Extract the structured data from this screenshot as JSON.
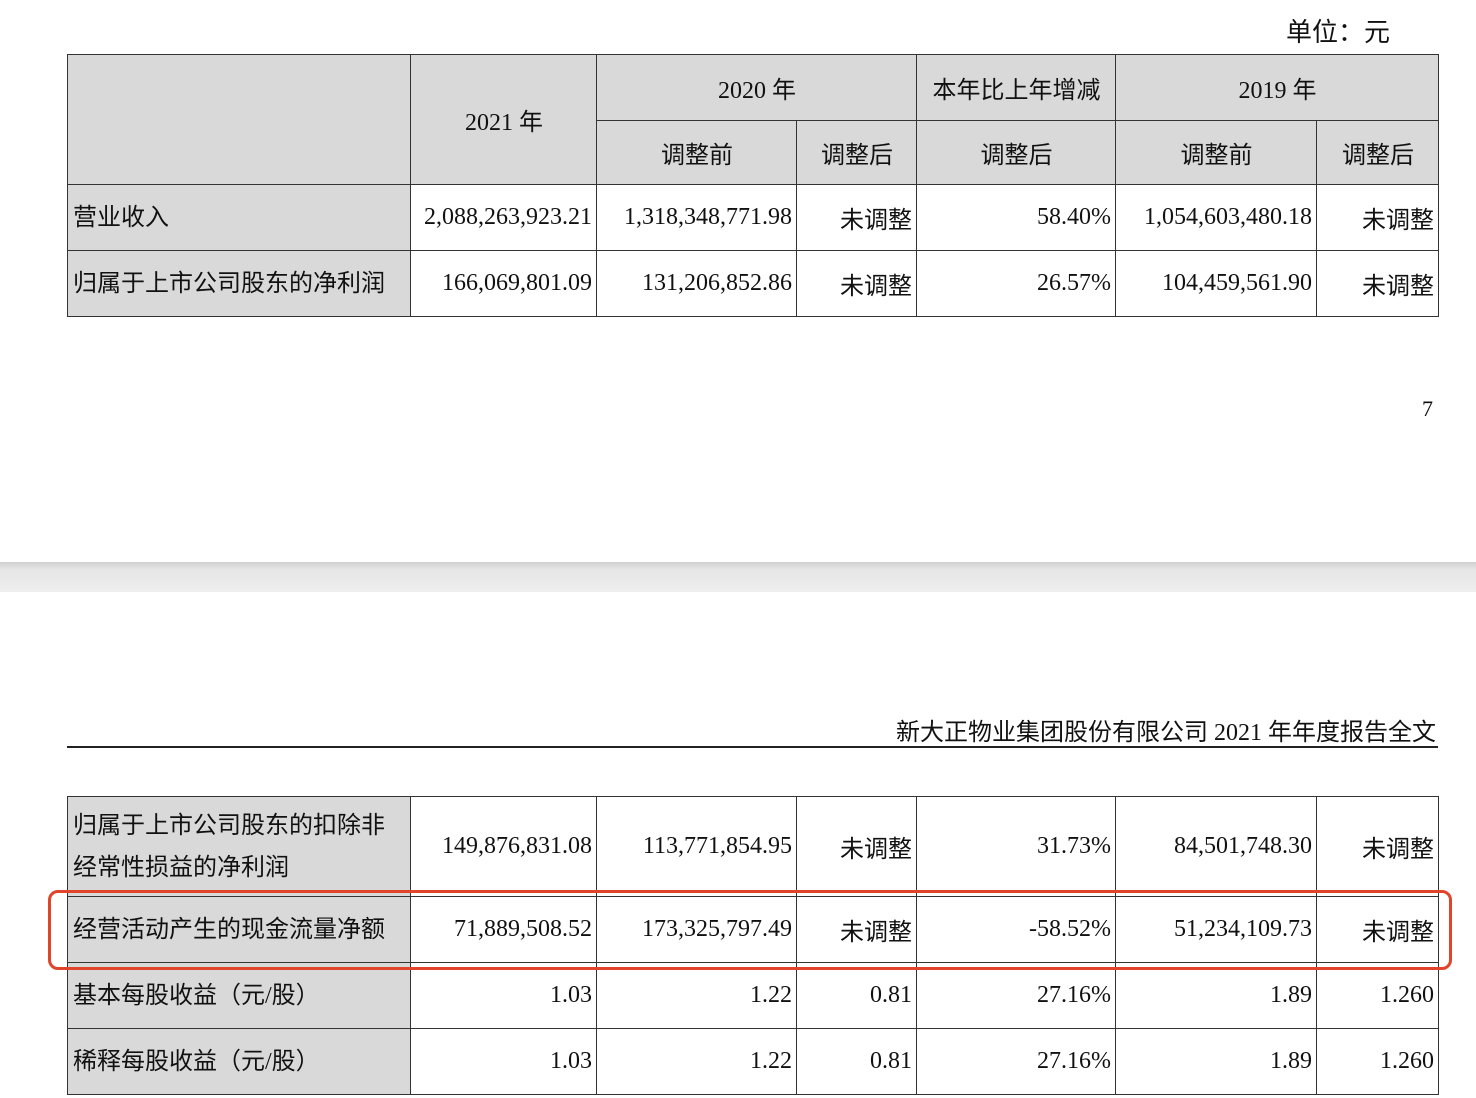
{
  "unit": "单位：元",
  "table1": {
    "header": {
      "year_2021": "2021 年",
      "year_2020": "2020 年",
      "change": "本年比上年增减",
      "year_2019": "2019 年",
      "sub": [
        "调整前",
        "调整后",
        "调整后",
        "调整前",
        "调整后"
      ]
    },
    "rows": [
      [
        "营业收入",
        "2,088,263,923.21",
        "1,318,348,771.98",
        "未调整",
        "58.40%",
        "1,054,603,480.18",
        "未调整"
      ],
      [
        "归属于上市公司股东的净利润",
        "166,069,801.09",
        "131,206,852.86",
        "未调整",
        "26.57%",
        "104,459,561.90",
        "未调整"
      ]
    ]
  },
  "page_number": "7",
  "running_header": "新大正物业集团股份有限公司 2021 年年度报告全文",
  "table2": {
    "rows": [
      [
        "归属于上市公司股东的扣除非经常性损益的净利润",
        "149,876,831.08",
        "113,771,854.95",
        "未调整",
        "31.73%",
        "84,501,748.30",
        "未调整"
      ],
      [
        "经营活动产生的现金流量净额",
        "71,889,508.52",
        "173,325,797.49",
        "未调整",
        "-58.52%",
        "51,234,109.73",
        "未调整"
      ],
      [
        "基本每股收益（元/股）",
        "1.03",
        "1.22",
        "0.81",
        "27.16%",
        "1.89",
        "1.260"
      ],
      [
        "稀释每股收益（元/股）",
        "1.03",
        "1.22",
        "0.81",
        "27.16%",
        "1.89",
        "1.260"
      ]
    ]
  }
}
